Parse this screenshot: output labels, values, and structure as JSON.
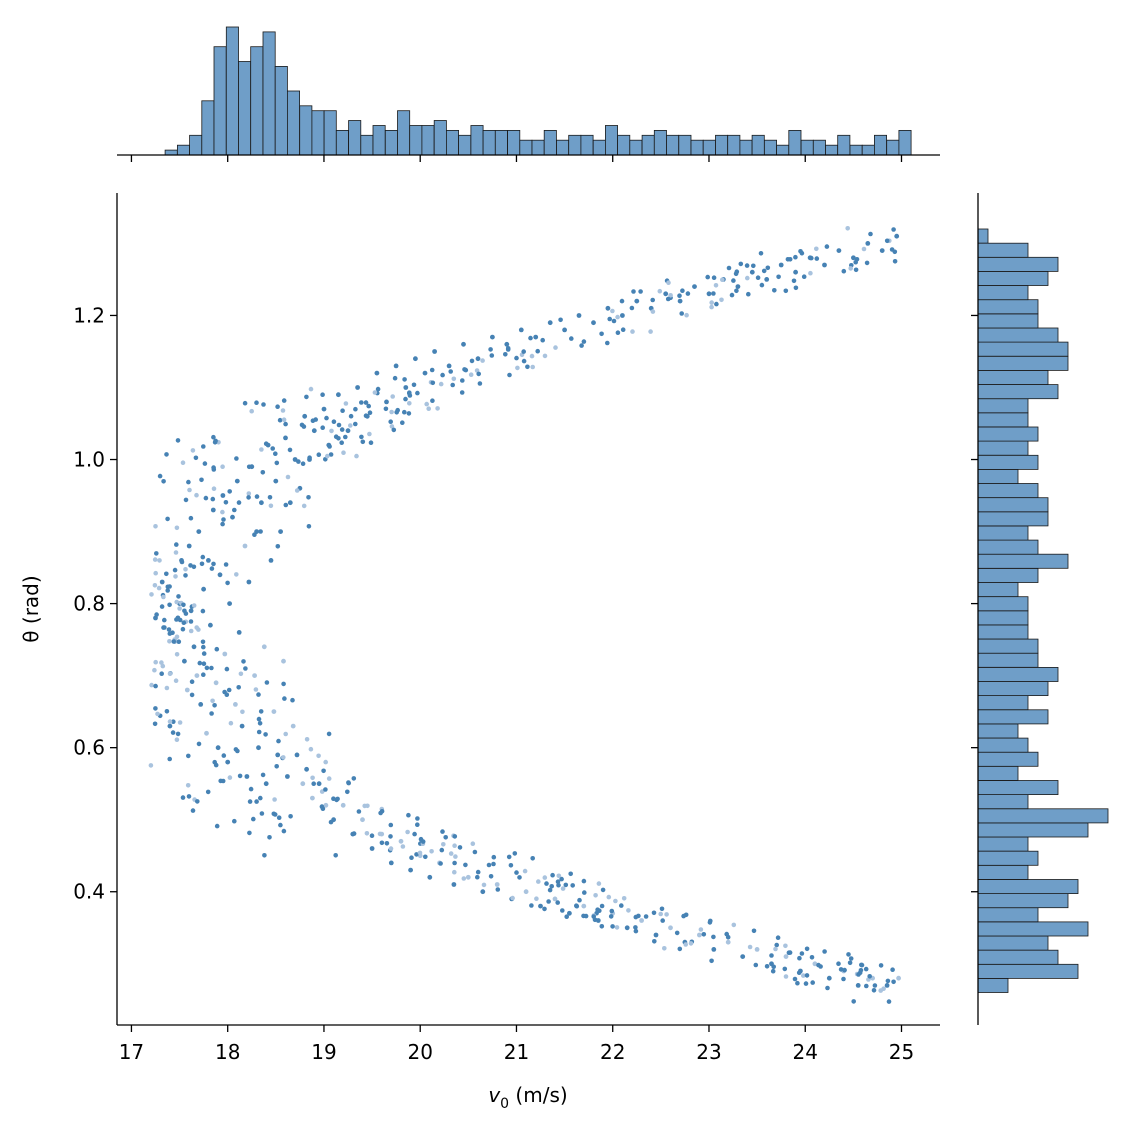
{
  "chart_data": {
    "type": "scatter",
    "subtype": "joint-plot with marginal histograms",
    "xlabel_symbol": "v",
    "xlabel_subscript": "0",
    "xlabel_unit": " (m/s)",
    "ylabel": "θ (rad)",
    "xlim": [
      16.85,
      25.4
    ],
    "ylim": [
      0.215,
      1.37
    ],
    "xticks": [
      "17",
      "18",
      "19",
      "20",
      "21",
      "22",
      "23",
      "24",
      "25"
    ],
    "yticks": [
      "0.4",
      "0.6",
      "0.8",
      "1.0",
      "1.2"
    ],
    "grid": false,
    "colors": {
      "points": "#4682b4",
      "points_faint": "#a9c3de",
      "hist_fill": "#6f9ec8",
      "hist_edge": "#1a1a1a",
      "axis": "#000000"
    },
    "scatter_shape": "V-shaped band: theta rises from about 0.27 to 1.30 above and falls below the vertex near v0 ≈ 17.3 at theta ≈ 0.78",
    "scatter_points": [
      [
        17.25,
        0.78
      ],
      [
        17.32,
        0.83
      ],
      [
        17.4,
        0.63
      ],
      [
        17.45,
        0.75
      ],
      [
        17.5,
        0.8
      ],
      [
        17.52,
        0.86
      ],
      [
        17.55,
        0.72
      ],
      [
        17.58,
        0.68
      ],
      [
        17.6,
        0.88
      ],
      [
        17.62,
        0.79
      ],
      [
        17.65,
        0.74
      ],
      [
        17.68,
        0.7
      ],
      [
        17.7,
        0.9
      ],
      [
        17.72,
        0.66
      ],
      [
        17.75,
        0.82
      ],
      [
        17.78,
        0.62
      ],
      [
        17.8,
        0.86
      ],
      [
        17.82,
        0.77
      ],
      [
        17.85,
        0.93
      ],
      [
        17.88,
        0.69
      ],
      [
        17.9,
        0.6
      ],
      [
        17.92,
        0.84
      ],
      [
        17.95,
        0.95
      ],
      [
        17.97,
        0.73
      ],
      [
        18.0,
        0.58
      ],
      [
        18.02,
        0.8
      ],
      [
        18.05,
        0.92
      ],
      [
        18.08,
        0.66
      ],
      [
        18.1,
        0.97
      ],
      [
        18.12,
        0.76
      ],
      [
        18.15,
        0.63
      ],
      [
        18.18,
        0.88
      ],
      [
        18.2,
        0.56
      ],
      [
        18.22,
        0.83
      ],
      [
        18.25,
        0.99
      ],
      [
        18.28,
        0.7
      ],
      [
        18.3,
        0.9
      ],
      [
        18.32,
        0.6
      ],
      [
        18.35,
        0.94
      ],
      [
        18.38,
        0.74
      ],
      [
        18.4,
        0.55
      ],
      [
        18.42,
        1.02
      ],
      [
        18.45,
        0.86
      ],
      [
        18.48,
        0.65
      ],
      [
        18.5,
        0.97
      ],
      [
        18.52,
        0.59
      ],
      [
        18.55,
        0.9
      ],
      [
        18.58,
        0.72
      ],
      [
        18.6,
        1.03
      ],
      [
        18.62,
        0.56
      ],
      [
        18.65,
        0.94
      ],
      [
        18.68,
        0.63
      ],
      [
        18.7,
        1.0
      ],
      [
        18.72,
        0.59
      ],
      [
        18.75,
        0.96
      ],
      [
        18.78,
        0.55
      ],
      [
        18.8,
        1.06
      ],
      [
        18.82,
        0.57
      ],
      [
        18.85,
        1.0
      ],
      [
        18.88,
        0.53
      ],
      [
        18.9,
        1.04
      ],
      [
        18.95,
        0.55
      ],
      [
        19.0,
        1.07
      ],
      [
        19.02,
        0.52
      ],
      [
        19.05,
        1.02
      ],
      [
        19.1,
        0.5
      ],
      [
        19.15,
        1.09
      ],
      [
        19.2,
        0.52
      ],
      [
        19.25,
        1.04
      ],
      [
        19.3,
        0.48
      ],
      [
        19.35,
        1.1
      ],
      [
        19.4,
        0.5
      ],
      [
        19.45,
        1.06
      ],
      [
        19.5,
        0.46
      ],
      [
        19.55,
        1.12
      ],
      [
        19.6,
        0.48
      ],
      [
        19.65,
        1.08
      ],
      [
        19.7,
        0.44
      ],
      [
        19.75,
        1.13
      ],
      [
        19.8,
        0.47
      ],
      [
        19.85,
        1.1
      ],
      [
        19.9,
        0.43
      ],
      [
        19.95,
        1.14
      ],
      [
        20.0,
        0.45
      ],
      [
        20.05,
        1.12
      ],
      [
        20.1,
        0.42
      ],
      [
        20.15,
        1.15
      ],
      [
        20.2,
        0.44
      ],
      [
        20.3,
        1.13
      ],
      [
        20.35,
        0.41
      ],
      [
        20.45,
        1.16
      ],
      [
        20.5,
        0.42
      ],
      [
        20.6,
        1.14
      ],
      [
        20.65,
        0.4
      ],
      [
        20.75,
        1.17
      ],
      [
        20.8,
        0.41
      ],
      [
        20.9,
        1.16
      ],
      [
        20.95,
        0.39
      ],
      [
        21.05,
        1.18
      ],
      [
        21.1,
        0.4
      ],
      [
        21.2,
        1.17
      ],
      [
        21.25,
        0.38
      ],
      [
        21.35,
        1.19
      ],
      [
        21.4,
        0.39
      ],
      [
        21.5,
        1.18
      ],
      [
        21.55,
        0.37
      ],
      [
        21.65,
        1.2
      ],
      [
        21.7,
        0.38
      ],
      [
        21.8,
        1.19
      ],
      [
        21.85,
        0.36
      ],
      [
        21.95,
        1.21
      ],
      [
        22.0,
        0.37
      ],
      [
        22.1,
        1.2
      ],
      [
        22.15,
        0.35
      ],
      [
        22.25,
        1.22
      ],
      [
        22.3,
        0.36
      ],
      [
        22.4,
        1.21
      ],
      [
        22.45,
        0.34
      ],
      [
        22.55,
        1.23
      ],
      [
        22.6,
        0.35
      ],
      [
        22.7,
        1.22
      ],
      [
        22.75,
        0.33
      ],
      [
        22.85,
        1.24
      ],
      [
        22.9,
        0.34
      ],
      [
        23.0,
        1.23
      ],
      [
        23.05,
        0.32
      ],
      [
        23.15,
        1.25
      ],
      [
        23.2,
        0.33
      ],
      [
        23.3,
        1.24
      ],
      [
        23.35,
        0.31
      ],
      [
        23.45,
        1.26
      ],
      [
        23.5,
        0.32
      ],
      [
        23.6,
        1.25
      ],
      [
        23.65,
        0.3
      ],
      [
        23.75,
        1.27
      ],
      [
        23.8,
        0.31
      ],
      [
        23.9,
        1.26
      ],
      [
        23.95,
        0.29
      ],
      [
        24.05,
        1.28
      ],
      [
        24.1,
        0.3
      ],
      [
        24.2,
        1.27
      ],
      [
        24.25,
        0.28
      ],
      [
        24.35,
        1.29
      ],
      [
        24.4,
        0.29
      ],
      [
        24.5,
        1.28
      ],
      [
        24.55,
        0.27
      ],
      [
        24.65,
        1.3
      ],
      [
        24.7,
        0.28
      ],
      [
        24.8,
        1.29
      ],
      [
        24.85,
        0.27
      ],
      [
        24.95,
        1.31
      ],
      [
        24.97,
        0.28
      ]
    ],
    "x_hist_counts": [
      1,
      2,
      4,
      11,
      22,
      26,
      19,
      22,
      25,
      18,
      13,
      10,
      9,
      9,
      5,
      7,
      4,
      6,
      5,
      9,
      6,
      6,
      7,
      5,
      4,
      6,
      5,
      5,
      5,
      3,
      3,
      5,
      3,
      4,
      4,
      3,
      6,
      4,
      3,
      4,
      5,
      4,
      4,
      3,
      3,
      4,
      4,
      3,
      4,
      3,
      2,
      5,
      3,
      3,
      2,
      4,
      2,
      2,
      4,
      3,
      5
    ],
    "y_hist_counts": [
      3,
      10,
      8,
      7,
      11,
      6,
      9,
      10,
      5,
      6,
      5,
      11,
      13,
      5,
      8,
      4,
      6,
      5,
      4,
      7,
      5,
      7,
      8,
      6,
      6,
      5,
      5,
      5,
      4,
      6,
      9,
      6,
      5,
      7,
      7,
      6,
      4,
      6,
      5,
      6,
      5,
      5,
      8,
      7,
      9,
      9,
      8,
      6,
      6,
      5,
      7,
      8,
      5,
      1
    ]
  }
}
